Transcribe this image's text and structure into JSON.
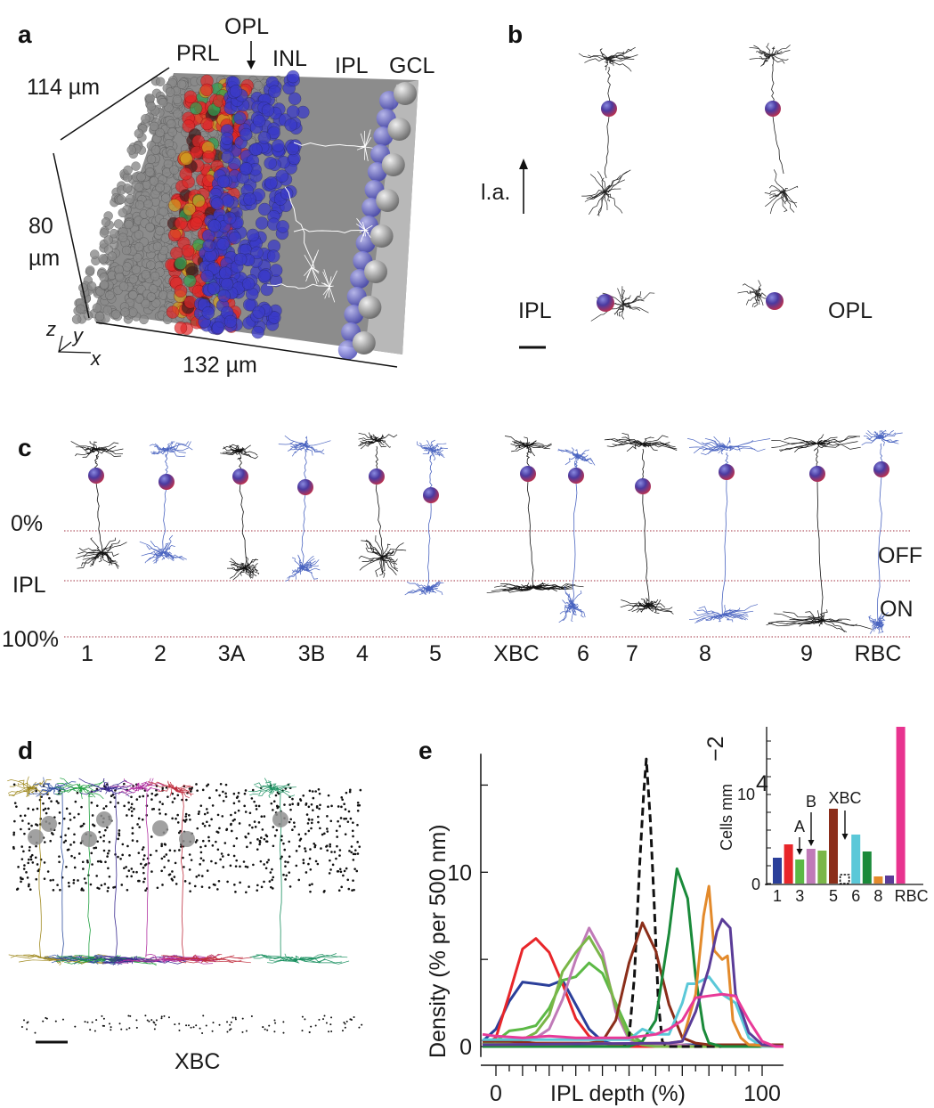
{
  "panels": {
    "a": {
      "letter": "a",
      "layers": [
        "PRL",
        "OPL",
        "INL",
        "IPL",
        "GCL"
      ],
      "dim_y": "114 µm",
      "dim_z_value": "80",
      "dim_z_unit": "µm",
      "dim_x": "132 µm",
      "axes": [
        "z",
        "y",
        "x"
      ],
      "colors": {
        "photoreceptor": "#8a8a8a",
        "bipolar_red": "#e02828",
        "bipolar_blue": "#3a3ac8",
        "ganglion": "#a0a0a0"
      }
    },
    "b": {
      "letter": "b",
      "arrow_label": "l.a.",
      "left_label": "IPL",
      "right_label": "OPL"
    },
    "c": {
      "letter": "c",
      "depth_top": "0%",
      "depth_mid": "IPL",
      "depth_bottom": "100%",
      "off_label": "OFF",
      "on_label": "ON",
      "types": [
        "1",
        "2",
        "3A",
        "3B",
        "4",
        "5",
        "XBC",
        "6",
        "7",
        "8",
        "9",
        "RBC"
      ],
      "type_colors": [
        "#111111",
        "#4a64c0",
        "#111111",
        "#4a64c0",
        "#111111",
        "#4a64c0",
        "#111111",
        "#4a64c0",
        "#111111",
        "#4a64c0",
        "#111111",
        "#4a64c0"
      ]
    },
    "d": {
      "letter": "d",
      "label": "XBC"
    },
    "e": {
      "letter": "e"
    }
  },
  "chart_data": [
    {
      "type": "line",
      "panel": "e",
      "xlabel": "IPL depth (%)",
      "ylabel": "Density (% per 500 nm)",
      "xlim": [
        -5,
        108
      ],
      "ylim": [
        -0.6,
        16.8
      ],
      "xticks": [
        0,
        100
      ],
      "yticks": [
        0,
        10
      ],
      "grid": false,
      "series": [
        {
          "key": "1",
          "color": "#2b3f9a",
          "dashed": false,
          "points": [
            [
              -5,
              0.3
            ],
            [
              0,
              1.0
            ],
            [
              5,
              2.6
            ],
            [
              10,
              3.7
            ],
            [
              15,
              3.6
            ],
            [
              20,
              3.5
            ],
            [
              25,
              3.8
            ],
            [
              30,
              2.4
            ],
            [
              35,
              1.0
            ],
            [
              40,
              0.3
            ],
            [
              45,
              0.1
            ],
            [
              60,
              0.1
            ],
            [
              80,
              0.1
            ],
            [
              100,
              0
            ],
            [
              108,
              0
            ]
          ]
        },
        {
          "key": "2",
          "color": "#e8262a",
          "dashed": false,
          "points": [
            [
              -5,
              0.1
            ],
            [
              0,
              0.5
            ],
            [
              5,
              3.0
            ],
            [
              10,
              5.6
            ],
            [
              15,
              6.2
            ],
            [
              20,
              5.4
            ],
            [
              25,
              3.6
            ],
            [
              30,
              1.6
            ],
            [
              35,
              0.6
            ],
            [
              40,
              0.2
            ],
            [
              45,
              0.1
            ],
            [
              50,
              0
            ],
            [
              108,
              0
            ]
          ]
        },
        {
          "key": "3A",
          "color": "#5cb946",
          "dashed": false,
          "points": [
            [
              -5,
              0.2
            ],
            [
              0,
              0.3
            ],
            [
              5,
              0.9
            ],
            [
              10,
              1.0
            ],
            [
              15,
              1.2
            ],
            [
              20,
              2.2
            ],
            [
              25,
              3.8
            ],
            [
              30,
              4.0
            ],
            [
              35,
              4.8
            ],
            [
              40,
              4.2
            ],
            [
              45,
              2.5
            ],
            [
              50,
              0.8
            ],
            [
              55,
              0.2
            ],
            [
              60,
              0.1
            ],
            [
              70,
              0.1
            ],
            [
              75,
              0
            ],
            [
              108,
              0
            ]
          ]
        },
        {
          "key": "3B",
          "color": "#c07ab8",
          "dashed": false,
          "points": [
            [
              -5,
              0.1
            ],
            [
              10,
              0.2
            ],
            [
              15,
              0.5
            ],
            [
              20,
              1.0
            ],
            [
              25,
              2.7
            ],
            [
              30,
              5.0
            ],
            [
              35,
              6.8
            ],
            [
              40,
              5.4
            ],
            [
              45,
              2.0
            ],
            [
              50,
              0.4
            ],
            [
              55,
              0.1
            ],
            [
              70,
              0.1
            ],
            [
              75,
              0
            ],
            [
              108,
              0
            ]
          ]
        },
        {
          "key": "4",
          "color": "#7ab648",
          "dashed": false,
          "points": [
            [
              -5,
              0.1
            ],
            [
              5,
              0.2
            ],
            [
              10,
              0.4
            ],
            [
              15,
              0.8
            ],
            [
              20,
              1.8
            ],
            [
              25,
              4.3
            ],
            [
              30,
              5.4
            ],
            [
              35,
              6.3
            ],
            [
              40,
              5.0
            ],
            [
              45,
              2.3
            ],
            [
              50,
              0.5
            ],
            [
              55,
              0.1
            ],
            [
              60,
              0
            ],
            [
              108,
              0
            ]
          ]
        },
        {
          "key": "XBC",
          "color": "#111111",
          "dashed": true,
          "points": [
            [
              -5,
              0
            ],
            [
              48,
              0
            ],
            [
              50,
              0.5
            ],
            [
              52,
              4.0
            ],
            [
              54,
              10.5
            ],
            [
              55.5,
              14.5
            ],
            [
              56.5,
              16.5
            ],
            [
              58,
              13.0
            ],
            [
              59.5,
              8.0
            ],
            [
              61,
              2.5
            ],
            [
              62.5,
              0.3
            ],
            [
              64,
              0
            ],
            [
              108,
              0
            ]
          ]
        },
        {
          "key": "5",
          "color": "#8b2e1a",
          "dashed": false,
          "points": [
            [
              -5,
              0.3
            ],
            [
              5,
              0.3
            ],
            [
              15,
              0.2
            ],
            [
              35,
              0.2
            ],
            [
              40,
              0.3
            ],
            [
              45,
              1.5
            ],
            [
              50,
              4.8
            ],
            [
              55,
              7.1
            ],
            [
              60,
              5.5
            ],
            [
              65,
              2.4
            ],
            [
              70,
              0.5
            ],
            [
              75,
              0.2
            ],
            [
              80,
              0.1
            ],
            [
              108,
              0.1
            ]
          ]
        },
        {
          "key": "6",
          "color": "#1a8a3a",
          "dashed": false,
          "points": [
            [
              -5,
              0
            ],
            [
              50,
              0
            ],
            [
              55,
              0.3
            ],
            [
              60,
              1.5
            ],
            [
              65,
              6.5
            ],
            [
              68,
              10.2
            ],
            [
              72,
              8.5
            ],
            [
              75,
              4.0
            ],
            [
              78,
              1.0
            ],
            [
              80,
              0.2
            ],
            [
              85,
              0
            ],
            [
              108,
              0
            ]
          ]
        },
        {
          "key": "7",
          "color": "#5bc8d8",
          "dashed": false,
          "points": [
            [
              -5,
              0.4
            ],
            [
              50,
              0.4
            ],
            [
              55,
              1.0
            ],
            [
              60,
              0.7
            ],
            [
              65,
              0.7
            ],
            [
              70,
              2.5
            ],
            [
              72,
              3.6
            ],
            [
              75,
              3.6
            ],
            [
              80,
              4.0
            ],
            [
              85,
              3.0
            ],
            [
              90,
              2.5
            ],
            [
              95,
              0.5
            ],
            [
              100,
              0
            ],
            [
              108,
              0
            ]
          ]
        },
        {
          "key": "8",
          "color": "#e38a2b",
          "dashed": false,
          "points": [
            [
              -5,
              0.1
            ],
            [
              65,
              0.2
            ],
            [
              70,
              0.3
            ],
            [
              75,
              3.0
            ],
            [
              78,
              7.5
            ],
            [
              80,
              9.2
            ],
            [
              82,
              5.5
            ],
            [
              85,
              5.0
            ],
            [
              87,
              5.2
            ],
            [
              89,
              1.5
            ],
            [
              92,
              0.5
            ],
            [
              95,
              0.1
            ],
            [
              108,
              0
            ]
          ]
        },
        {
          "key": "9",
          "color": "#5a3c98",
          "dashed": false,
          "points": [
            [
              -5,
              0.1
            ],
            [
              65,
              0.2
            ],
            [
              70,
              0.3
            ],
            [
              75,
              2.0
            ],
            [
              80,
              4.5
            ],
            [
              83,
              6.6
            ],
            [
              85,
              7.3
            ],
            [
              88,
              6.8
            ],
            [
              90,
              3.0
            ],
            [
              95,
              0.8
            ],
            [
              100,
              0.1
            ],
            [
              108,
              0
            ]
          ]
        },
        {
          "key": "RBC",
          "color": "#e83a98",
          "dashed": false,
          "points": [
            [
              -5,
              0.7
            ],
            [
              0,
              0.6
            ],
            [
              10,
              0.5
            ],
            [
              20,
              0.6
            ],
            [
              30,
              0.5
            ],
            [
              40,
              0.5
            ],
            [
              50,
              0.5
            ],
            [
              60,
              0.7
            ],
            [
              65,
              1.0
            ],
            [
              70,
              1.5
            ],
            [
              75,
              2.8
            ],
            [
              80,
              2.9
            ],
            [
              85,
              3.0
            ],
            [
              90,
              2.9
            ],
            [
              95,
              1.5
            ],
            [
              100,
              0.3
            ],
            [
              105,
              0
            ],
            [
              108,
              0
            ]
          ]
        }
      ]
    },
    {
      "type": "bar",
      "panel": "e-inset",
      "ylabel": "Cells mm",
      "ylabel_exp": "−2",
      "ytick_zero": "0",
      "ytick_base": "10",
      "ytick_exp": "4",
      "ylim": [
        0,
        17600
      ],
      "categories": [
        "1",
        "2",
        "3A",
        "3B",
        "4",
        "5",
        "XBC",
        "6",
        "7",
        "8",
        "9",
        "RBC"
      ],
      "xtick_labels": [
        "1",
        "3",
        "5",
        "6",
        "8",
        "RBC"
      ],
      "values": [
        2900,
        4400,
        2700,
        3900,
        3700,
        8400,
        1000,
        5500,
        3600,
        800,
        900,
        17600
      ],
      "colors": [
        "#2b3f9a",
        "#e8262a",
        "#5cb946",
        "#c07ab8",
        "#7ab648",
        "#8b2e1a",
        "#111111",
        "#5bc8d8",
        "#1a8a3a",
        "#e38a2b",
        "#5a3c98",
        "#e8338f"
      ],
      "annotations": [
        "A",
        "B",
        "XBC"
      ]
    }
  ]
}
